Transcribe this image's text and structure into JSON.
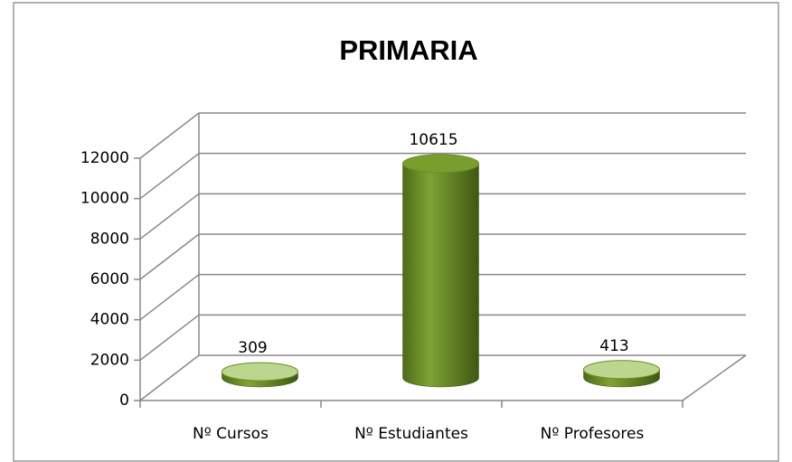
{
  "chart_data": {
    "type": "bar3d",
    "title": "PRIMARIA",
    "categories": [
      "Nº Cursos",
      "Nº Estudiantes",
      "Nº Profesores"
    ],
    "values": [
      309,
      10615,
      413
    ],
    "color": "#6b8e23",
    "ylim": [
      0,
      12000
    ],
    "yticks": [
      0,
      2000,
      4000,
      6000,
      8000,
      10000,
      12000
    ],
    "grid": true
  }
}
